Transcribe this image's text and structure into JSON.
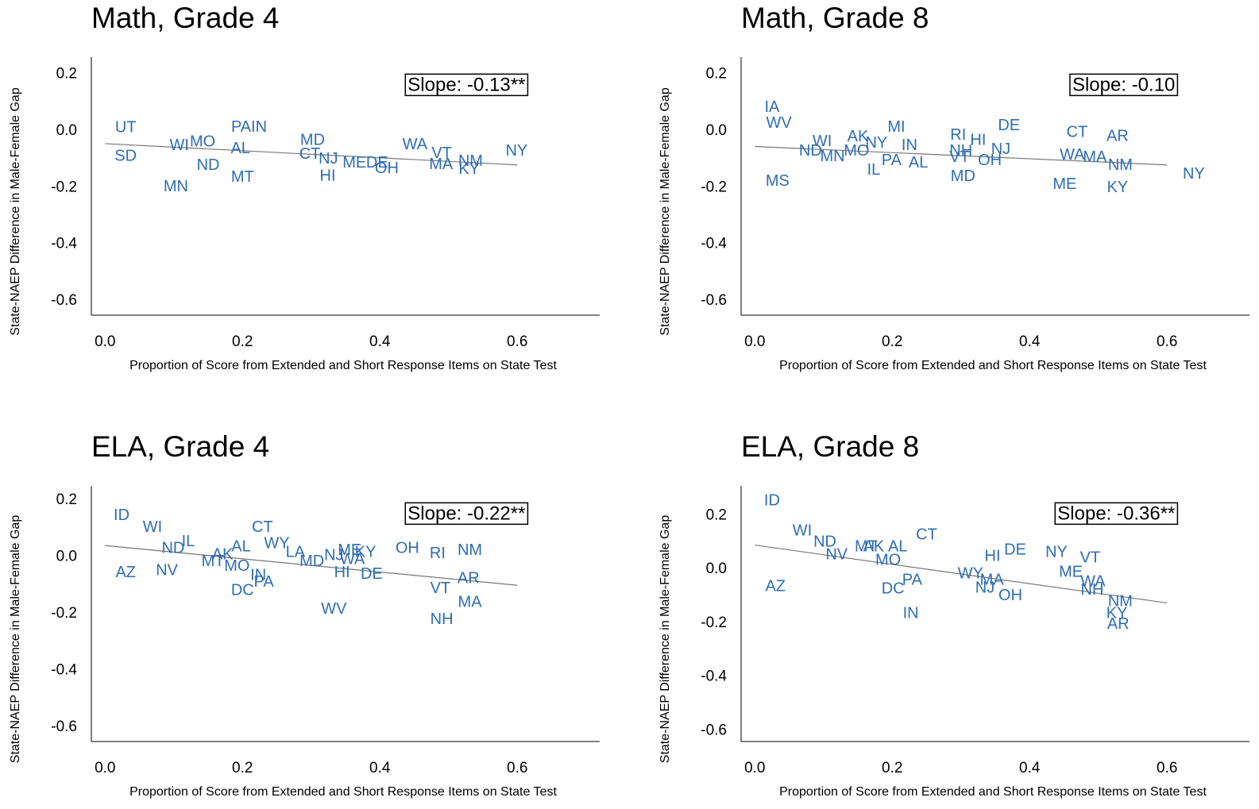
{
  "chart_data": [
    {
      "type": "scatter",
      "title": "Math, Grade 4",
      "xlabel": "Proportion of Score from Extended and Short Response Items on State Test",
      "ylabel": "State-NAEP Difference in Male-Female Gap",
      "annotation": "Slope: -0.13**",
      "color": "#2e6db4",
      "xlim": [
        -0.02,
        0.72
      ],
      "ylim": [
        -0.65,
        0.26
      ],
      "xticks": [
        {
          "value": 0,
          "label": "0.0"
        },
        0.2,
        0.4,
        0.6
      ],
      "yticks": [
        0.2,
        {
          "value": 0,
          "label": "0.0"
        },
        -0.2,
        -0.4,
        -0.6
      ],
      "labels": [
        "UT",
        "SD",
        "PA",
        "IN",
        "MO",
        "WI",
        "MN",
        "ND",
        "MT",
        "AL",
        "MD",
        "CT",
        "NJ",
        "HI",
        "ME",
        "DE",
        "OH",
        "WA",
        "VT",
        "MA",
        "NM",
        "KY",
        "NY"
      ],
      "x": [
        0.03,
        0.03,
        0.198,
        0.224,
        0.142,
        0.108,
        0.103,
        0.15,
        0.2,
        0.197,
        0.302,
        0.298,
        0.325,
        0.324,
        0.363,
        0.396,
        0.41,
        0.451,
        0.49,
        0.489,
        0.532,
        0.53,
        0.599
      ],
      "values": [
        0.01,
        -0.09,
        0.011,
        0.011,
        -0.04,
        -0.053,
        -0.199,
        -0.123,
        -0.165,
        -0.064,
        -0.034,
        -0.084,
        -0.1,
        -0.16,
        -0.115,
        -0.115,
        -0.134,
        -0.05,
        -0.081,
        -0.12,
        -0.109,
        -0.137,
        -0.073
      ],
      "trend_line": {
        "x": [
          0,
          0.6
        ],
        "values": [
          -0.045,
          -0.12
        ]
      }
    },
    {
      "type": "scatter",
      "title": "Math, Grade 8",
      "xlabel": "Proportion of Score from Extended and Short Response Items on State Test",
      "ylabel": "State-NAEP Difference in Male-Female Gap",
      "annotation": "Slope: -0.10",
      "color": "#2e6db4",
      "xlim": [
        -0.02,
        0.72
      ],
      "ylim": [
        -0.65,
        0.26
      ],
      "xticks": [
        {
          "value": 0,
          "label": "0.0"
        },
        0.2,
        0.4,
        0.6
      ],
      "yticks": [
        0.2,
        {
          "value": 0,
          "label": "0.0"
        },
        -0.2,
        -0.4,
        -0.6
      ],
      "labels": [
        "IA",
        "WV",
        "MS",
        "ND",
        "WI",
        "MN",
        "AK",
        "MI",
        "NY",
        "IN",
        "MO",
        "IL",
        "PA",
        "AL",
        "RI",
        "HI",
        "DE",
        "NH",
        "NJ",
        "VT",
        "OH",
        "MD",
        "CT",
        "AR",
        "WA",
        "MA",
        "NM",
        "ME",
        "KY",
        "NY"
      ],
      "x": [
        0.025,
        0.035,
        0.033,
        0.081,
        0.098,
        0.113,
        0.15,
        0.206,
        0.177,
        0.225,
        0.148,
        0.173,
        0.199,
        0.238,
        0.296,
        0.325,
        0.37,
        0.3,
        0.358,
        0.298,
        0.342,
        0.303,
        0.469,
        0.528,
        0.462,
        0.495,
        0.532,
        0.451,
        0.528,
        0.639
      ],
      "values": [
        0.081,
        0.025,
        -0.179,
        -0.073,
        -0.039,
        -0.092,
        -0.022,
        0.011,
        -0.045,
        -0.053,
        -0.073,
        -0.14,
        -0.106,
        -0.115,
        -0.017,
        -0.034,
        0.017,
        -0.073,
        -0.067,
        -0.095,
        -0.106,
        -0.162,
        -0.006,
        -0.02,
        -0.087,
        -0.095,
        -0.123,
        -0.19,
        -0.201,
        -0.154
      ],
      "trend_line": {
        "x": [
          0,
          0.6
        ],
        "values": [
          -0.055,
          -0.12
        ]
      }
    },
    {
      "type": "scatter",
      "title": "ELA, Grade 4",
      "xlabel": "Proportion of Score from Extended and Short Response Items on State Test",
      "ylabel": "State-NAEP Difference in Male-Female Gap",
      "annotation": "Slope: -0.22**",
      "color": "#2e6db4",
      "xlim": [
        -0.02,
        0.72
      ],
      "ylim": [
        -0.65,
        0.25
      ],
      "xticks": [
        {
          "value": 0,
          "label": "0.0"
        },
        0.2,
        0.4,
        0.6
      ],
      "yticks": [
        0.2,
        {
          "value": 0,
          "label": "0.0"
        },
        -0.2,
        -0.4,
        -0.6
      ],
      "labels": [
        "ID",
        "WI",
        "IL",
        "ND",
        "NV",
        "AZ",
        "MT",
        "AK",
        "AL",
        "MO",
        "DC",
        "IN",
        "PA",
        "CT",
        "WY",
        "LA",
        "MD",
        "NJ",
        "ME",
        "KY",
        "WA",
        "HI",
        "DE",
        "WV",
        "OH",
        "RI",
        "NM",
        "AR",
        "VT",
        "MA",
        "NH"
      ],
      "x": [
        0.024,
        0.069,
        0.121,
        0.099,
        0.09,
        0.03,
        0.157,
        0.171,
        0.198,
        0.192,
        0.2,
        0.223,
        0.231,
        0.229,
        0.25,
        0.277,
        0.301,
        0.333,
        0.356,
        0.379,
        0.36,
        0.345,
        0.388,
        0.333,
        0.44,
        0.484,
        0.531,
        0.529,
        0.488,
        0.531,
        0.49
      ],
      "values": [
        0.145,
        0.103,
        0.053,
        0.028,
        -0.05,
        -0.056,
        -0.017,
        0.006,
        0.034,
        -0.034,
        -0.12,
        -0.067,
        -0.09,
        0.103,
        0.045,
        0.014,
        -0.017,
        0.003,
        0.022,
        0.014,
        -0.011,
        -0.056,
        -0.062,
        -0.185,
        0.028,
        0.011,
        0.022,
        -0.078,
        -0.112,
        -0.162,
        -0.221
      ],
      "trend_line": {
        "x": [
          0,
          0.6
        ],
        "values": [
          0.04,
          -0.1
        ]
      }
    },
    {
      "type": "scatter",
      "title": "ELA, Grade 8",
      "xlabel": "Proportion of Score from Extended and Short Response Items on State Test",
      "ylabel": "State-NAEP Difference in Male-Female Gap",
      "annotation": "Slope: -0.36**",
      "color": "#2e6db4",
      "xlim": [
        -0.02,
        0.72
      ],
      "ylim": [
        -0.64,
        0.31
      ],
      "xticks": [
        {
          "value": 0,
          "label": "0.0"
        },
        0.2,
        0.4,
        0.6
      ],
      "yticks": [
        0.2,
        {
          "value": 0,
          "label": "0.0"
        },
        -0.2,
        -0.4,
        -0.6
      ],
      "labels": [
        "ID",
        "WI",
        "ND",
        "NV",
        "AZ",
        "MT",
        "AK",
        "AL",
        "MO",
        "CT",
        "PA",
        "DC",
        "IN",
        "HI",
        "DE",
        "WY",
        "MA",
        "OH",
        "NJ",
        "NY",
        "VT",
        "ME",
        "WA",
        "NH",
        "NM",
        "KY",
        "AR"
      ],
      "x": [
        0.025,
        0.069,
        0.102,
        0.119,
        0.03,
        0.162,
        0.173,
        0.208,
        0.194,
        0.25,
        0.229,
        0.201,
        0.227,
        0.346,
        0.379,
        0.314,
        0.345,
        0.372,
        0.335,
        0.439,
        0.488,
        0.46,
        0.492,
        0.491,
        0.532,
        0.527,
        0.529
      ],
      "values": [
        0.253,
        0.141,
        0.1,
        0.053,
        -0.065,
        0.082,
        0.082,
        0.082,
        0.032,
        0.126,
        -0.041,
        -0.074,
        -0.165,
        0.047,
        0.071,
        -0.018,
        -0.041,
        -0.1,
        -0.071,
        0.062,
        0.041,
        -0.012,
        -0.047,
        -0.079,
        -0.121,
        -0.165,
        -0.206
      ],
      "trend_line": {
        "x": [
          0,
          0.6
        ],
        "values": [
          0.09,
          -0.125
        ]
      }
    }
  ]
}
